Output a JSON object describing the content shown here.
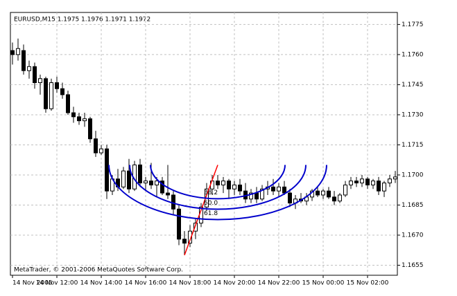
{
  "chart_data": {
    "type": "candlestick",
    "title": "EURUSD,M15  1.1975 1.1976 1.1971 1.1972",
    "footer": "MetaTrader, © 2001-2006 MetaQuotes Software Corp.",
    "categories": [
      "14 Nov 2005",
      null,
      null,
      null,
      null,
      null,
      null,
      null,
      "14 Nov 12:00",
      null,
      null,
      null,
      null,
      null,
      null,
      null,
      "14 Nov 14:00",
      null,
      null,
      null,
      null,
      null,
      null,
      null,
      "14 Nov 16:00",
      null,
      null,
      null,
      null,
      null,
      null,
      null,
      "14 Nov 18:00",
      null,
      null,
      null,
      null,
      null,
      null,
      null,
      "14 Nov 20:00",
      null,
      null,
      null,
      null,
      null,
      null,
      null,
      "14 Nov 22:00",
      null,
      null,
      null,
      null,
      null,
      null,
      null,
      "15 Nov 00:00",
      null,
      null,
      null,
      null,
      null,
      null,
      null,
      "15 Nov 02:00",
      null,
      null,
      null,
      null,
      null
    ],
    "open": [
      1.1762,
      1.176,
      1.1762,
      1.1752,
      1.1754,
      1.1746,
      1.1748,
      1.1733,
      1.1746,
      1.1743,
      1.174,
      1.1731,
      1.1729,
      1.1727,
      1.1728,
      1.1718,
      1.1711,
      1.1713,
      1.1692,
      1.1698,
      1.1694,
      1.1702,
      1.1693,
      1.1705,
      1.1696,
      1.1697,
      1.1695,
      1.1697,
      1.1691,
      1.169,
      1.1683,
      1.1668,
      1.1666,
      1.1672,
      1.1676,
      1.1684,
      1.1693,
      1.1697,
      1.1695,
      1.1697,
      1.1693,
      1.1695,
      1.1692,
      1.1688,
      1.1691,
      1.1688,
      1.1693,
      1.1694,
      1.1692,
      1.1694,
      1.1691,
      1.1686,
      1.1688,
      1.1687,
      1.1689,
      1.1692,
      1.169,
      1.1692,
      1.1689,
      1.1687,
      1.169,
      1.1695,
      1.1697,
      1.1696,
      1.1698,
      1.1695,
      1.1697,
      1.1692,
      1.1696,
      1.1698
    ],
    "high": [
      1.1766,
      1.1768,
      1.1765,
      1.1757,
      1.1756,
      1.175,
      1.1749,
      1.1748,
      1.1749,
      1.1746,
      1.1742,
      1.1734,
      1.1731,
      1.1731,
      1.1729,
      1.1722,
      1.1715,
      1.1715,
      1.17,
      1.1703,
      1.1704,
      1.1708,
      1.1707,
      1.1708,
      1.1699,
      1.1706,
      1.1699,
      1.1699,
      1.1705,
      1.1692,
      1.1685,
      1.1672,
      1.1675,
      1.1678,
      1.1686,
      1.1696,
      1.17,
      1.17,
      1.1699,
      1.1698,
      1.1697,
      1.1698,
      1.1696,
      1.1693,
      1.1694,
      1.1695,
      1.1697,
      1.1698,
      1.1696,
      1.1697,
      1.1693,
      1.169,
      1.1691,
      1.1691,
      1.1693,
      1.1694,
      1.1693,
      1.1694,
      1.1692,
      1.1691,
      1.1697,
      1.1699,
      1.1699,
      1.17,
      1.1699,
      1.1698,
      1.1699,
      1.1697,
      1.17,
      1.1702
    ],
    "low": [
      1.1755,
      1.1757,
      1.175,
      1.1748,
      1.1743,
      1.174,
      1.1731,
      1.1732,
      1.1741,
      1.1738,
      1.173,
      1.1726,
      1.1725,
      1.1724,
      1.1716,
      1.1709,
      1.171,
      1.1688,
      1.169,
      1.1692,
      1.1693,
      1.1691,
      1.1692,
      1.1694,
      1.1692,
      1.1693,
      1.1689,
      1.169,
      1.1688,
      1.168,
      1.1665,
      1.166,
      1.1664,
      1.1668,
      1.1674,
      1.1682,
      1.169,
      1.1693,
      1.1691,
      1.1688,
      1.169,
      1.169,
      1.1686,
      1.1686,
      1.1686,
      1.1687,
      1.169,
      1.169,
      1.1689,
      1.169,
      1.1684,
      1.1683,
      1.1686,
      1.1685,
      1.1687,
      1.1689,
      1.1688,
      1.1688,
      1.1685,
      1.1686,
      1.1689,
      1.1693,
      1.1694,
      1.1694,
      1.1693,
      1.1693,
      1.169,
      1.1689,
      1.1694,
      1.1696
    ],
    "close": [
      1.176,
      1.1763,
      1.1752,
      1.1754,
      1.1746,
      1.1748,
      1.1733,
      1.1746,
      1.1743,
      1.174,
      1.1731,
      1.1729,
      1.1727,
      1.1728,
      1.1718,
      1.1711,
      1.1713,
      1.1692,
      1.1698,
      1.1694,
      1.1702,
      1.1693,
      1.1705,
      1.1696,
      1.1697,
      1.1695,
      1.1697,
      1.1691,
      1.169,
      1.1683,
      1.1668,
      1.1666,
      1.1672,
      1.1676,
      1.1684,
      1.1693,
      1.1697,
      1.1695,
      1.1697,
      1.1693,
      1.1695,
      1.1692,
      1.1688,
      1.1691,
      1.1688,
      1.1693,
      1.1694,
      1.1692,
      1.1694,
      1.1691,
      1.1686,
      1.1688,
      1.1687,
      1.1689,
      1.1692,
      1.169,
      1.1692,
      1.1689,
      1.1687,
      1.169,
      1.1695,
      1.1697,
      1.1696,
      1.1698,
      1.1695,
      1.1697,
      1.1692,
      1.1696,
      1.1698,
      1.1699
    ],
    "ylim": [
      1.165,
      1.1781
    ],
    "yticks": [
      1.1655,
      {
        "value": 1.167,
        "label": "1.1670"
      },
      1.1685,
      {
        "value": 1.17,
        "label": "1.1700"
      },
      1.1715,
      {
        "value": 1.173,
        "label": "1.1730"
      },
      1.1745,
      {
        "value": 1.176,
        "label": "1.1760"
      },
      1.1775
    ],
    "grid": true,
    "trendline": {
      "x": [
        31,
        37
      ],
      "y": [
        1.166,
        1.1705
      ],
      "color": "#ff0000"
    },
    "fib_arcs": {
      "levels": [
        38.2,
        {
          "value": 50,
          "label": "50.0"
        },
        61.8
      ],
      "color": "#0000cc"
    }
  }
}
